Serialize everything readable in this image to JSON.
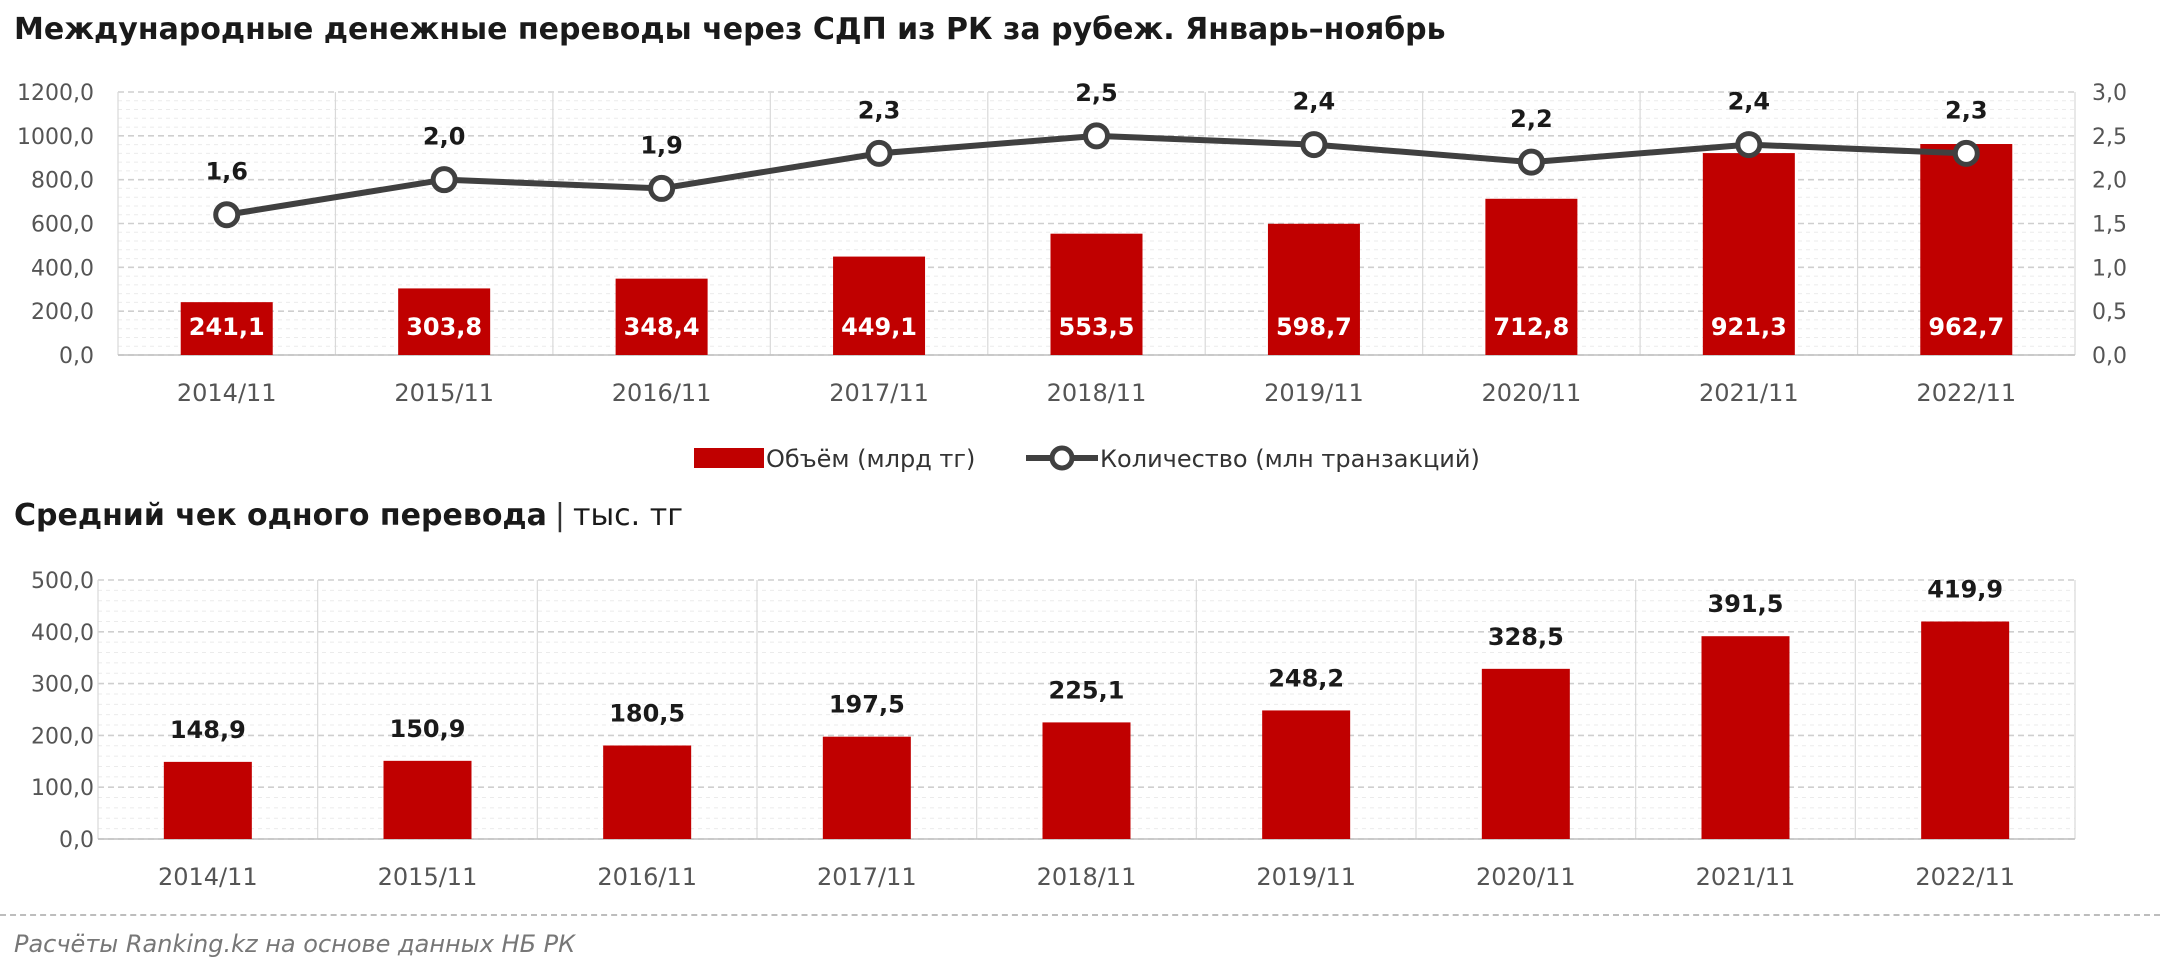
{
  "header": {
    "title": "Международные денежные переводы через СДП из РК за рубеж. Январь–ноябрь"
  },
  "second_chart_header": {
    "title": "Средний чек одного перевода",
    "separator": "|",
    "unit": "тыс. тг"
  },
  "footer": {
    "source": "Расчёты Ranking.kz на основе данных НБ РК"
  },
  "colors": {
    "bar": "#c00000",
    "line": "#404040",
    "marker_fill": "#ffffff",
    "grid": "#d9d9d9"
  },
  "chart_data": [
    {
      "type": "bar+line",
      "categories": [
        "2014/11",
        "2015/11",
        "2016/11",
        "2017/11",
        "2018/11",
        "2019/11",
        "2020/11",
        "2021/11",
        "2022/11"
      ],
      "series": [
        {
          "name": "Объём (млрд тг)",
          "type": "bar",
          "axis": "left",
          "values": [
            241.1,
            303.8,
            348.4,
            449.1,
            553.5,
            598.7,
            712.8,
            921.3,
            962.7
          ],
          "labels": [
            "241,1",
            "303,8",
            "348,4",
            "449,1",
            "553,5",
            "598,7",
            "712,8",
            "921,3",
            "962,7"
          ]
        },
        {
          "name": "Количество (млн транзакций)",
          "type": "line",
          "axis": "right",
          "values": [
            1.6,
            2.0,
            1.9,
            2.3,
            2.5,
            2.4,
            2.2,
            2.4,
            2.3
          ],
          "labels": [
            "1,6",
            "2,0",
            "1,9",
            "2,3",
            "2,5",
            "2,4",
            "2,2",
            "2,4",
            "2,3"
          ]
        }
      ],
      "y_left": {
        "ylim": [
          0,
          1200
        ],
        "ticks": [
          "0,0",
          "200,0",
          "400,0",
          "600,0",
          "800,0",
          "1000,0",
          "1200,0"
        ]
      },
      "y_right": {
        "ylim": [
          0,
          3
        ],
        "ticks": [
          "0,0",
          "0,5",
          "1,0",
          "1,5",
          "2,0",
          "2,5",
          "3,0"
        ]
      },
      "legend_position": "bottom",
      "grid": true
    },
    {
      "type": "bar",
      "categories": [
        "2014/11",
        "2015/11",
        "2016/11",
        "2017/11",
        "2018/11",
        "2019/11",
        "2020/11",
        "2021/11",
        "2022/11"
      ],
      "values": [
        148.9,
        150.9,
        180.5,
        197.5,
        225.1,
        248.2,
        328.5,
        391.5,
        419.9
      ],
      "labels": [
        "148,9",
        "150,9",
        "180,5",
        "197,5",
        "225,1",
        "248,2",
        "328,5",
        "391,5",
        "419,9"
      ],
      "ylim": [
        0,
        500
      ],
      "yticks": [
        "0,0",
        "100,0",
        "200,0",
        "300,0",
        "400,0",
        "500,0"
      ],
      "grid": true
    }
  ]
}
